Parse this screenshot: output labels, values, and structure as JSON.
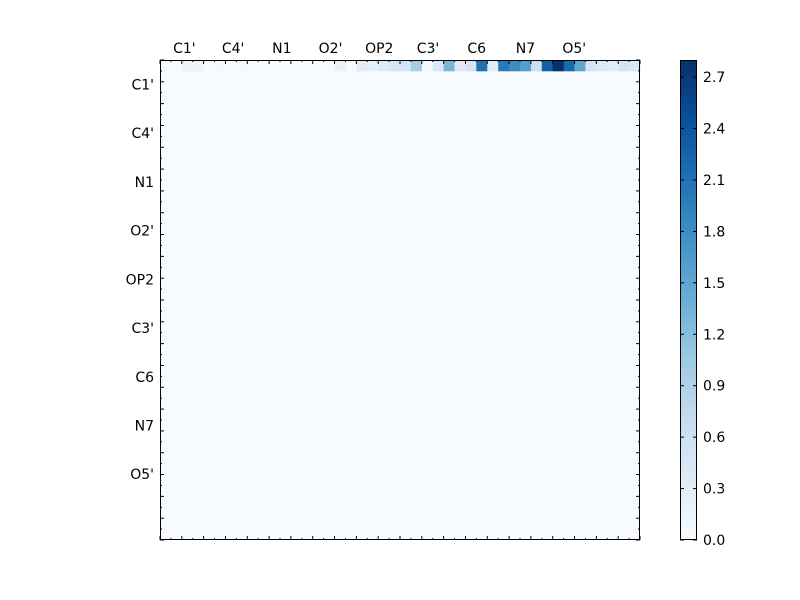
{
  "chart_data": {
    "type": "heatmap",
    "title": "",
    "xlabel": "",
    "ylabel": "",
    "x_tick_labels": [
      "C1'",
      "C4'",
      "N1",
      "O2'",
      "OP2",
      "C3'",
      "C6",
      "N7",
      "O5'"
    ],
    "y_tick_labels": [
      "C1'",
      "C4'",
      "N1",
      "O2'",
      "OP2",
      "C3'",
      "C6",
      "N7",
      "O5'"
    ],
    "x_ticks_on_top": true,
    "n_rows": 44,
    "n_cols": 44,
    "colormap": "Blues",
    "colormap_stops": [
      "#f7fbff",
      "#deebf7",
      "#c6dbef",
      "#9ecae1",
      "#6baed6",
      "#4292c6",
      "#2171b5",
      "#08519c",
      "#08306b"
    ],
    "value_range": [
      0.0,
      2.8
    ],
    "colorbar_ticks": [
      {
        "value": 0.0,
        "label": "0.0"
      },
      {
        "value": 0.3,
        "label": "0.3"
      },
      {
        "value": 0.6,
        "label": "0.6"
      },
      {
        "value": 0.9,
        "label": "0.9"
      },
      {
        "value": 1.2,
        "label": "1.2"
      },
      {
        "value": 1.5,
        "label": "1.5"
      },
      {
        "value": 1.8,
        "label": "1.8"
      },
      {
        "value": 2.1,
        "label": "2.1"
      },
      {
        "value": 2.4,
        "label": "2.4"
      },
      {
        "value": 2.7,
        "label": "2.7"
      }
    ],
    "grid": false,
    "cells": [
      {
        "row": 0,
        "col": 2,
        "value": 0.15
      },
      {
        "row": 0,
        "col": 3,
        "value": 0.15
      },
      {
        "row": 0,
        "col": 5,
        "value": 0.05
      },
      {
        "row": 0,
        "col": 7,
        "value": 0.05
      },
      {
        "row": 0,
        "col": 16,
        "value": 0.2
      },
      {
        "row": 0,
        "col": 18,
        "value": 0.3
      },
      {
        "row": 0,
        "col": 19,
        "value": 0.25
      },
      {
        "row": 0,
        "col": 20,
        "value": 0.35
      },
      {
        "row": 0,
        "col": 21,
        "value": 0.45
      },
      {
        "row": 0,
        "col": 22,
        "value": 0.5
      },
      {
        "row": 0,
        "col": 23,
        "value": 1.0
      },
      {
        "row": 0,
        "col": 24,
        "value": 0.05
      },
      {
        "row": 0,
        "col": 25,
        "value": 0.4
      },
      {
        "row": 0,
        "col": 26,
        "value": 1.3
      },
      {
        "row": 0,
        "col": 27,
        "value": 0.35
      },
      {
        "row": 0,
        "col": 28,
        "value": 0.5
      },
      {
        "row": 0,
        "col": 29,
        "value": 2.1
      },
      {
        "row": 0,
        "col": 30,
        "value": 0.3
      },
      {
        "row": 0,
        "col": 31,
        "value": 2.0
      },
      {
        "row": 0,
        "col": 32,
        "value": 1.8
      },
      {
        "row": 0,
        "col": 33,
        "value": 1.6
      },
      {
        "row": 0,
        "col": 34,
        "value": 0.6
      },
      {
        "row": 0,
        "col": 35,
        "value": 2.3
      },
      {
        "row": 0,
        "col": 36,
        "value": 2.8
      },
      {
        "row": 0,
        "col": 37,
        "value": 2.2
      },
      {
        "row": 0,
        "col": 38,
        "value": 1.5
      },
      {
        "row": 0,
        "col": 39,
        "value": 0.5
      },
      {
        "row": 0,
        "col": 40,
        "value": 0.4
      },
      {
        "row": 0,
        "col": 41,
        "value": 0.3
      },
      {
        "row": 0,
        "col": 42,
        "value": 0.5
      },
      {
        "row": 0,
        "col": 43,
        "value": 0.4
      }
    ]
  }
}
